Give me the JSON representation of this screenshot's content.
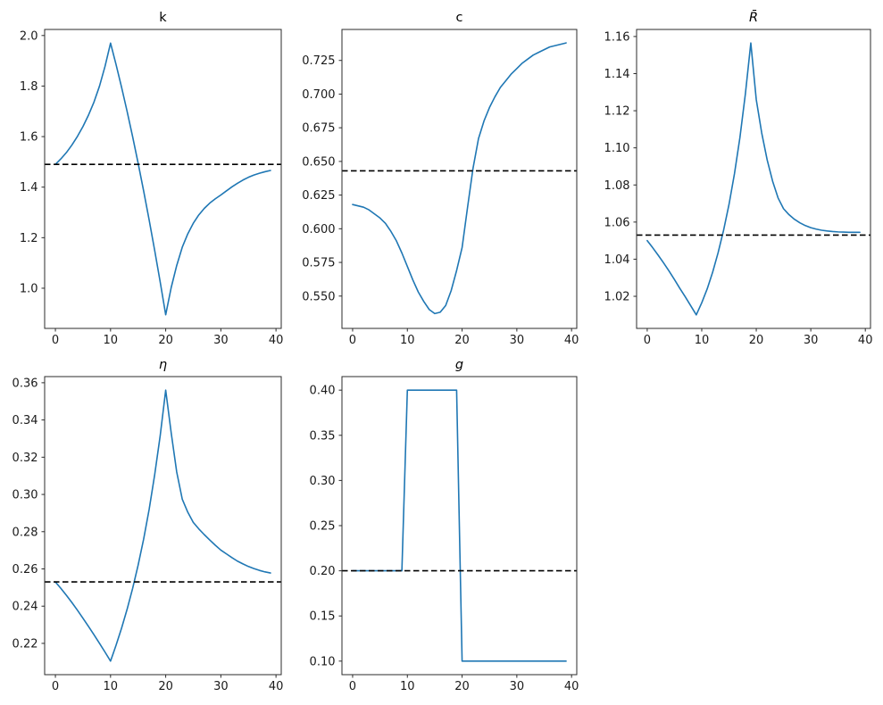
{
  "figure": {
    "background": "#ffffff",
    "series_color": "#1f77b4",
    "dashed_color": "#000000",
    "axis_color": "#2b2b2b",
    "description": "Five-panel transition-dynamics figure: k, c, R-bar, eta, g versus time"
  },
  "chart_data": [
    {
      "type": "line",
      "name": "k",
      "title": "k",
      "title_italic": false,
      "xlim": [
        -1.95,
        40.95
      ],
      "ylim": [
        0.841,
        2.024
      ],
      "xticks": [
        0,
        10,
        20,
        30,
        40
      ],
      "xtick_labels": [
        "0",
        "10",
        "20",
        "30",
        "40"
      ],
      "yticks": [
        1.0,
        1.2,
        1.4,
        1.6,
        1.8,
        2.0
      ],
      "ytick_labels": [
        "1.0",
        "1.2",
        "1.4",
        "1.6",
        "1.8",
        "2.0"
      ],
      "steady_state": 1.49,
      "steady_state_style": "dashed",
      "grid": false,
      "legend": null,
      "x": [
        0,
        1,
        2,
        3,
        4,
        5,
        6,
        7,
        8,
        9,
        10,
        11,
        12,
        13,
        14,
        15,
        16,
        17,
        18,
        19,
        20,
        21,
        22,
        23,
        24,
        25,
        26,
        27,
        28,
        29,
        30,
        31,
        32,
        33,
        34,
        35,
        36,
        37,
        38,
        39
      ],
      "values": [
        1.49,
        1.512,
        1.537,
        1.567,
        1.601,
        1.64,
        1.685,
        1.737,
        1.8,
        1.878,
        1.97,
        1.885,
        1.795,
        1.7,
        1.6,
        1.495,
        1.385,
        1.27,
        1.15,
        1.025,
        0.895,
        1.003,
        1.09,
        1.162,
        1.215,
        1.257,
        1.29,
        1.316,
        1.337,
        1.354,
        1.369,
        1.385,
        1.401,
        1.415,
        1.428,
        1.439,
        1.448,
        1.455,
        1.461,
        1.466
      ]
    },
    {
      "type": "line",
      "name": "c",
      "title": "c",
      "title_italic": false,
      "xlim": [
        -1.95,
        40.95
      ],
      "ylim": [
        0.526,
        0.748
      ],
      "xticks": [
        0,
        10,
        20,
        30,
        40
      ],
      "xtick_labels": [
        "0",
        "10",
        "20",
        "30",
        "40"
      ],
      "yticks": [
        0.55,
        0.575,
        0.6,
        0.625,
        0.65,
        0.675,
        0.7,
        0.725
      ],
      "ytick_labels": [
        "0.550",
        "0.575",
        "0.600",
        "0.625",
        "0.650",
        "0.675",
        "0.700",
        "0.725"
      ],
      "steady_state": 0.643,
      "steady_state_style": "dashed",
      "grid": false,
      "legend": null,
      "x": [
        0,
        1,
        2,
        3,
        4,
        5,
        6,
        7,
        8,
        9,
        10,
        11,
        12,
        13,
        14,
        15,
        16,
        17,
        18,
        19,
        20,
        21,
        22,
        23,
        24,
        25,
        26,
        27,
        28,
        29,
        30,
        31,
        32,
        33,
        34,
        35,
        36,
        37,
        38,
        39
      ],
      "values": [
        0.618,
        0.617,
        0.616,
        0.614,
        0.611,
        0.608,
        0.604,
        0.598,
        0.591,
        0.582,
        0.572,
        0.562,
        0.553,
        0.546,
        0.54,
        0.537,
        0.538,
        0.543,
        0.554,
        0.569,
        0.586,
        0.616,
        0.645,
        0.667,
        0.68,
        0.69,
        0.698,
        0.705,
        0.71,
        0.715,
        0.719,
        0.723,
        0.726,
        0.729,
        0.731,
        0.733,
        0.735,
        0.736,
        0.737,
        0.738
      ]
    },
    {
      "type": "line",
      "name": "rbar",
      "title": "R̄",
      "title_italic": true,
      "xlim": [
        -1.95,
        40.95
      ],
      "ylim": [
        1.0027,
        1.1638
      ],
      "xticks": [
        0,
        10,
        20,
        30,
        40
      ],
      "xtick_labels": [
        "0",
        "10",
        "20",
        "30",
        "40"
      ],
      "yticks": [
        1.02,
        1.04,
        1.06,
        1.08,
        1.1,
        1.12,
        1.14,
        1.16
      ],
      "ytick_labels": [
        "1.02",
        "1.04",
        "1.06",
        "1.08",
        "1.10",
        "1.12",
        "1.14",
        "1.16"
      ],
      "steady_state": 1.053,
      "steady_state_style": "dashed",
      "grid": false,
      "legend": null,
      "x": [
        0,
        1,
        2,
        3,
        4,
        5,
        6,
        7,
        8,
        9,
        10,
        11,
        12,
        13,
        14,
        15,
        16,
        17,
        18,
        19,
        20,
        21,
        22,
        23,
        24,
        25,
        26,
        27,
        28,
        29,
        30,
        31,
        32,
        33,
        34,
        35,
        36,
        37,
        38,
        39
      ],
      "values": [
        1.05,
        1.0462,
        1.0422,
        1.038,
        1.0336,
        1.029,
        1.0242,
        1.0196,
        1.0148,
        1.01,
        1.0165,
        1.024,
        1.033,
        1.0435,
        1.0555,
        1.0695,
        1.086,
        1.1055,
        1.129,
        1.1565,
        1.126,
        1.108,
        1.0935,
        1.082,
        1.073,
        1.0672,
        1.064,
        1.0615,
        1.0596,
        1.0581,
        1.057,
        1.0562,
        1.0556,
        1.0552,
        1.0549,
        1.0547,
        1.0546,
        1.0545,
        1.0545,
        1.0545
      ]
    },
    {
      "type": "line",
      "name": "eta",
      "title": "η",
      "title_italic": true,
      "xlim": [
        -1.95,
        40.95
      ],
      "ylim": [
        0.2032,
        0.3633
      ],
      "xticks": [
        0,
        10,
        20,
        30,
        40
      ],
      "xtick_labels": [
        "0",
        "10",
        "20",
        "30",
        "40"
      ],
      "yticks": [
        0.22,
        0.24,
        0.26,
        0.28,
        0.3,
        0.32,
        0.34,
        0.36
      ],
      "ytick_labels": [
        "0.22",
        "0.24",
        "0.26",
        "0.28",
        "0.30",
        "0.32",
        "0.34",
        "0.36"
      ],
      "steady_state": 0.253,
      "steady_state_style": "dashed",
      "grid": false,
      "legend": null,
      "x": [
        0,
        1,
        2,
        3,
        4,
        5,
        6,
        7,
        8,
        9,
        10,
        11,
        12,
        13,
        14,
        15,
        16,
        17,
        18,
        19,
        20,
        21,
        22,
        23,
        24,
        25,
        26,
        27,
        28,
        29,
        30,
        31,
        32,
        33,
        34,
        35,
        36,
        37,
        38,
        39
      ],
      "values": [
        0.253,
        0.2495,
        0.2458,
        0.2419,
        0.2378,
        0.2335,
        0.2291,
        0.2246,
        0.22,
        0.2153,
        0.2105,
        0.219,
        0.2282,
        0.2383,
        0.2495,
        0.262,
        0.276,
        0.292,
        0.3105,
        0.3315,
        0.356,
        0.333,
        0.312,
        0.2975,
        0.2905,
        0.285,
        0.2815,
        0.2784,
        0.2755,
        0.2727,
        0.2701,
        0.2681,
        0.2661,
        0.2642,
        0.2627,
        0.2613,
        0.2602,
        0.2592,
        0.2584,
        0.2578
      ]
    },
    {
      "type": "line",
      "name": "g",
      "title": "g",
      "title_italic": true,
      "xlim": [
        -1.95,
        40.95
      ],
      "ylim": [
        0.085,
        0.415
      ],
      "xticks": [
        0,
        10,
        20,
        30,
        40
      ],
      "xtick_labels": [
        "0",
        "10",
        "20",
        "30",
        "40"
      ],
      "yticks": [
        0.1,
        0.15,
        0.2,
        0.25,
        0.3,
        0.35,
        0.4
      ],
      "ytick_labels": [
        "0.10",
        "0.15",
        "0.20",
        "0.25",
        "0.30",
        "0.35",
        "0.40"
      ],
      "steady_state": 0.2,
      "steady_state_style": "dashed",
      "grid": false,
      "legend": null,
      "x": [
        0,
        1,
        2,
        3,
        4,
        5,
        6,
        7,
        8,
        9,
        10,
        11,
        12,
        13,
        14,
        15,
        16,
        17,
        18,
        19,
        20,
        21,
        22,
        23,
        24,
        25,
        26,
        27,
        28,
        29,
        30,
        31,
        32,
        33,
        34,
        35,
        36,
        37,
        38,
        39
      ],
      "values": [
        0.2,
        0.2,
        0.2,
        0.2,
        0.2,
        0.2,
        0.2,
        0.2,
        0.2,
        0.2,
        0.4,
        0.4,
        0.4,
        0.4,
        0.4,
        0.4,
        0.4,
        0.4,
        0.4,
        0.4,
        0.1,
        0.1,
        0.1,
        0.1,
        0.1,
        0.1,
        0.1,
        0.1,
        0.1,
        0.1,
        0.1,
        0.1,
        0.1,
        0.1,
        0.1,
        0.1,
        0.1,
        0.1,
        0.1,
        0.1
      ]
    }
  ]
}
